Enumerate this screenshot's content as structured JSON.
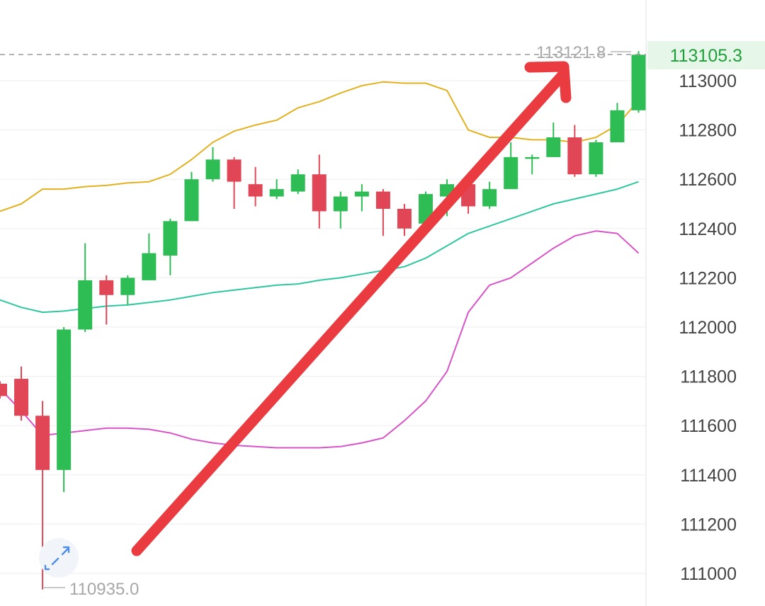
{
  "chart_data": {
    "type": "candlestick",
    "y_axis": {
      "ticks": [
        113000,
        112800,
        112600,
        112400,
        112200,
        112000,
        111800,
        111600,
        111400,
        111200,
        111000
      ],
      "ylim": [
        110900,
        113220
      ]
    },
    "candles": [
      {
        "o": 111770,
        "h": 111780,
        "l": 111710,
        "c": 111720
      },
      {
        "o": 111790,
        "h": 111840,
        "l": 111620,
        "c": 111640
      },
      {
        "o": 111640,
        "h": 111700,
        "l": 110935,
        "c": 111420
      },
      {
        "o": 111420,
        "h": 112000,
        "l": 111330,
        "c": 111990
      },
      {
        "o": 111990,
        "h": 112340,
        "l": 111980,
        "c": 112190
      },
      {
        "o": 112190,
        "h": 112210,
        "l": 112010,
        "c": 112130
      },
      {
        "o": 112130,
        "h": 112210,
        "l": 112090,
        "c": 112200
      },
      {
        "o": 112190,
        "h": 112380,
        "l": 112190,
        "c": 112300
      },
      {
        "o": 112290,
        "h": 112440,
        "l": 112210,
        "c": 112430
      },
      {
        "o": 112430,
        "h": 112630,
        "l": 112430,
        "c": 112600
      },
      {
        "o": 112600,
        "h": 112730,
        "l": 112590,
        "c": 112680
      },
      {
        "o": 112680,
        "h": 112690,
        "l": 112480,
        "c": 112590
      },
      {
        "o": 112580,
        "h": 112650,
        "l": 112490,
        "c": 112530
      },
      {
        "o": 112530,
        "h": 112600,
        "l": 112520,
        "c": 112560
      },
      {
        "o": 112550,
        "h": 112640,
        "l": 112540,
        "c": 112620
      },
      {
        "o": 112620,
        "h": 112700,
        "l": 112400,
        "c": 112470
      },
      {
        "o": 112470,
        "h": 112550,
        "l": 112400,
        "c": 112530
      },
      {
        "o": 112530,
        "h": 112580,
        "l": 112470,
        "c": 112550
      },
      {
        "o": 112550,
        "h": 112560,
        "l": 112370,
        "c": 112480
      },
      {
        "o": 112480,
        "h": 112500,
        "l": 112370,
        "c": 112400
      },
      {
        "o": 112420,
        "h": 112550,
        "l": 112420,
        "c": 112540
      },
      {
        "o": 112530,
        "h": 112600,
        "l": 112450,
        "c": 112580
      },
      {
        "o": 112580,
        "h": 112600,
        "l": 112460,
        "c": 112490
      },
      {
        "o": 112490,
        "h": 112590,
        "l": 112480,
        "c": 112560
      },
      {
        "o": 112560,
        "h": 112750,
        "l": 112560,
        "c": 112690
      },
      {
        "o": 112690,
        "h": 112700,
        "l": 112620,
        "c": 112690
      },
      {
        "o": 112690,
        "h": 112830,
        "l": 112690,
        "c": 112770
      },
      {
        "o": 112770,
        "h": 112820,
        "l": 112610,
        "c": 112620
      },
      {
        "o": 112620,
        "h": 112760,
        "l": 112610,
        "c": 112750
      },
      {
        "o": 112750,
        "h": 112910,
        "l": 112750,
        "c": 112880
      },
      {
        "o": 112880,
        "h": 113120,
        "l": 112870,
        "c": 113105.3
      }
    ],
    "series": [
      {
        "type": "line",
        "color": "#e3b11f",
        "values": [
          112470,
          112500,
          112560,
          112560,
          112570,
          112575,
          112585,
          112590,
          112620,
          112680,
          112750,
          112795,
          112820,
          112840,
          112890,
          112915,
          112950,
          112980,
          112995,
          112990,
          112990,
          112960,
          112800,
          112770,
          112770,
          112760,
          112760,
          112750,
          112770,
          112820,
          112920
        ]
      },
      {
        "type": "line",
        "color": "#2ec7a0",
        "values": [
          112110,
          112080,
          112060,
          112065,
          112075,
          112085,
          112090,
          112100,
          112110,
          112125,
          112140,
          112150,
          112160,
          112170,
          112175,
          112190,
          112200,
          112215,
          112230,
          112245,
          112280,
          112330,
          112380,
          112410,
          112440,
          112470,
          112500,
          112520,
          112540,
          112560,
          112590
        ]
      },
      {
        "type": "line",
        "color": "#d854c8",
        "values": [
          111750,
          111660,
          111560,
          111570,
          111580,
          111590,
          111590,
          111585,
          111570,
          111545,
          111530,
          111520,
          111515,
          111510,
          111510,
          111510,
          111515,
          111530,
          111550,
          111620,
          111700,
          111820,
          112060,
          112170,
          112200,
          112260,
          112320,
          112370,
          112390,
          112380,
          112300
        ]
      }
    ],
    "colors": {
      "up": "#2ebd55",
      "down": "#e04655",
      "arrow": "#ea3b40"
    },
    "annotations": {
      "high_label": "113121.8",
      "low_label": "110935.0",
      "last_price": "113105.3"
    },
    "grid": true
  },
  "ui": {
    "expand_icon": "expand-icon"
  }
}
